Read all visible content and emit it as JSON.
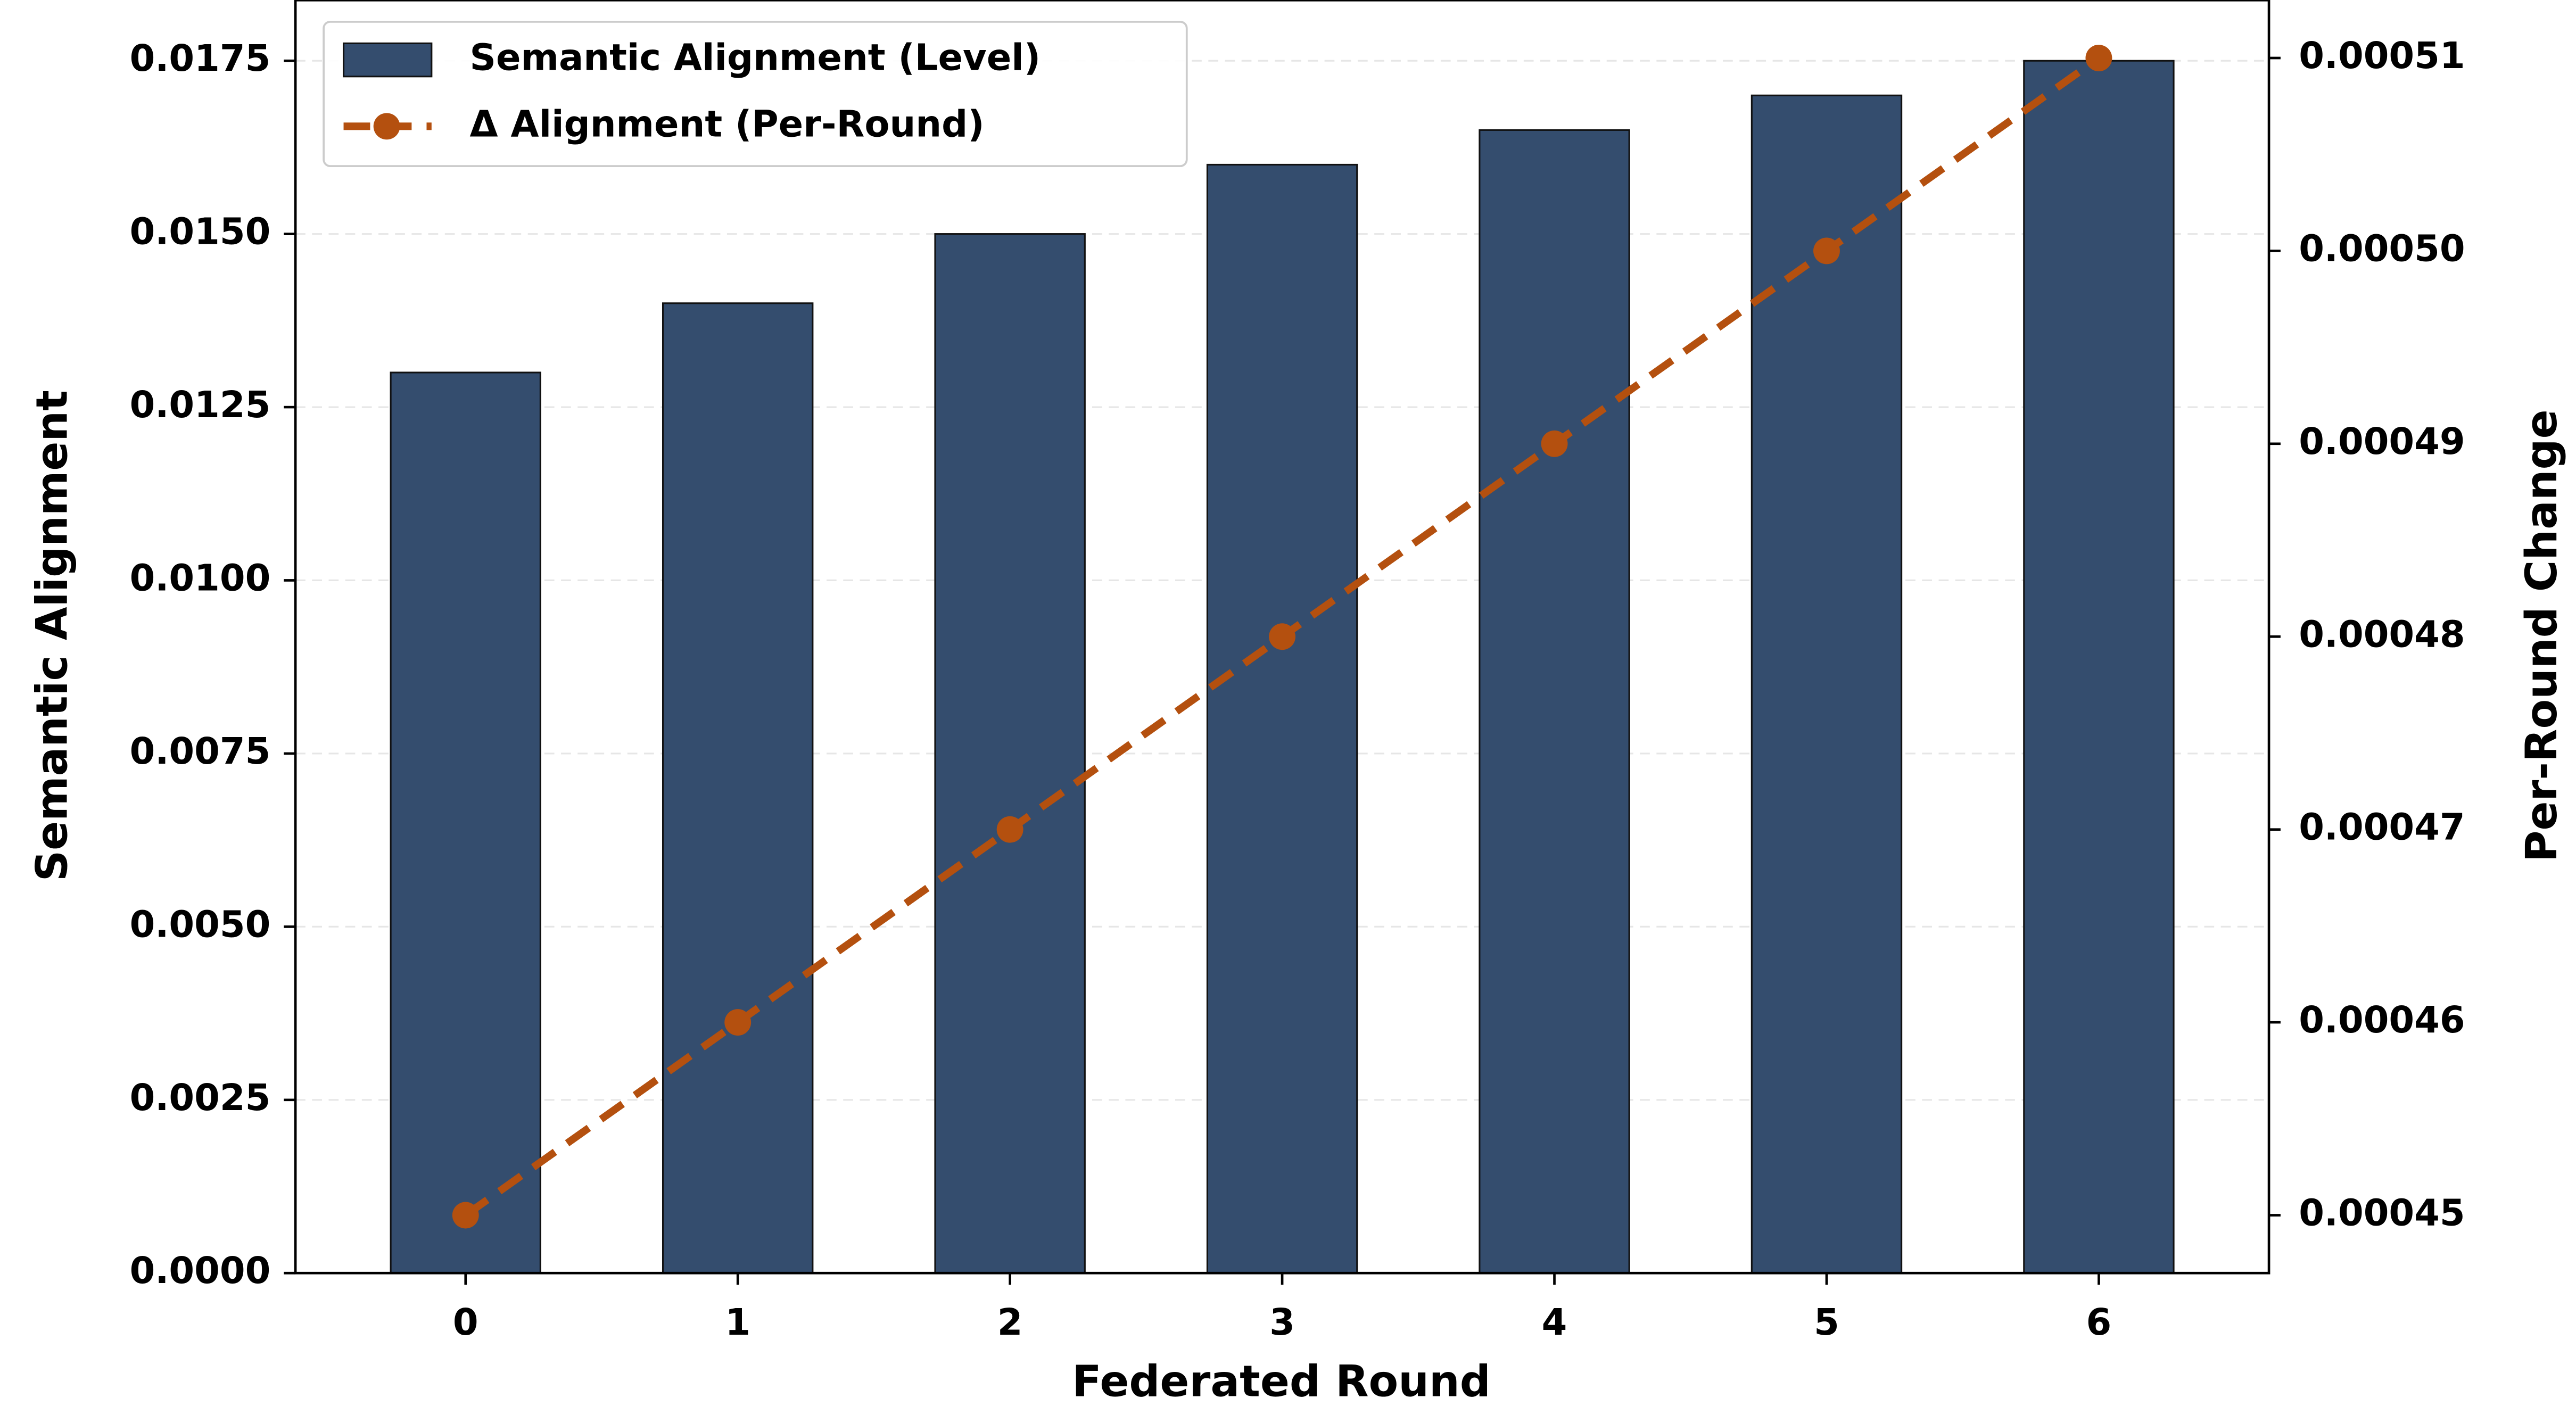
{
  "chart_data": {
    "type": "bar_line",
    "xlabel": "Federated Round",
    "ylabel": "Semantic Alignment",
    "y2label": "Per-Round Change",
    "categories": [
      "0",
      "1",
      "2",
      "3",
      "4",
      "5",
      "6"
    ],
    "series": [
      {
        "name": "Semantic Alignment (Level)",
        "type": "bar",
        "color": "#344d6e",
        "values": [
          0.013,
          0.014,
          0.015,
          0.016,
          0.0165,
          0.017,
          0.0175
        ]
      },
      {
        "name": "Δ Alignment (Per-Round)",
        "type": "line",
        "axis": "y2",
        "color": "#b4500f",
        "values": [
          0.00045,
          0.00046,
          0.00047,
          0.00048,
          0.00049,
          0.0005,
          0.00051
        ]
      }
    ],
    "ylim": [
      0,
      0.018375
    ],
    "yticks": [
      {
        "value": 0,
        "label": "0.0000"
      },
      {
        "value": 0.0025,
        "label": "0.0025"
      },
      {
        "value": 0.005,
        "label": "0.0050"
      },
      {
        "value": 0.0075,
        "label": "0.0075"
      },
      {
        "value": 0.01,
        "label": "0.0100"
      },
      {
        "value": 0.0125,
        "label": "0.0125"
      },
      {
        "value": 0.015,
        "label": "0.0150"
      },
      {
        "value": 0.0175,
        "label": "0.0175"
      }
    ],
    "y2lim": [
      0.000447,
      0.000513
    ],
    "y2ticks": [
      {
        "value": 0.00045,
        "label": "0.00045"
      },
      {
        "value": 0.00046,
        "label": "0.00046"
      },
      {
        "value": 0.00047,
        "label": "0.00047"
      },
      {
        "value": 0.00048,
        "label": "0.00048"
      },
      {
        "value": 0.00049,
        "label": "0.00049"
      },
      {
        "value": 0.0005,
        "label": "0.00050"
      },
      {
        "value": 0.00051,
        "label": "0.00051"
      }
    ],
    "grid": true,
    "legend": "upper left"
  }
}
